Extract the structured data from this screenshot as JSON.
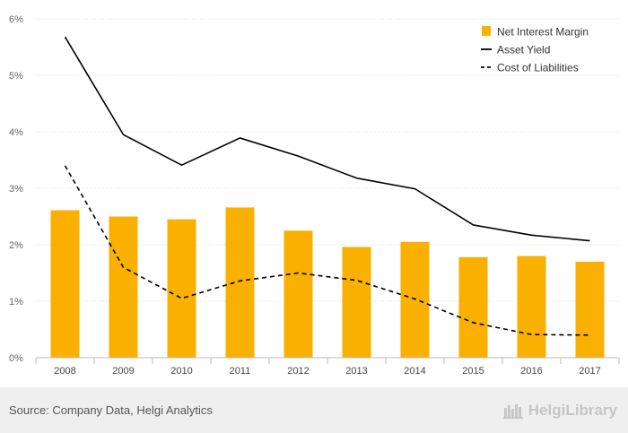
{
  "chart_data": {
    "type": "bar",
    "categories": [
      "2008",
      "2009",
      "2010",
      "2011",
      "2012",
      "2013",
      "2014",
      "2015",
      "2016",
      "2017"
    ],
    "series": [
      {
        "name": "Net Interest Margin",
        "type": "bar",
        "color": "#f9b000",
        "values": [
          2.61,
          2.5,
          2.45,
          2.66,
          2.25,
          1.96,
          2.05,
          1.78,
          1.8,
          1.7
        ]
      },
      {
        "name": "Asset Yield",
        "type": "line",
        "style": "solid",
        "color": "#000000",
        "values": [
          5.68,
          3.95,
          3.41,
          3.89,
          3.57,
          3.18,
          2.99,
          2.35,
          2.17,
          2.07
        ]
      },
      {
        "name": "Cost of Liabilities",
        "type": "line",
        "style": "dashed",
        "color": "#000000",
        "values": [
          3.4,
          1.6,
          1.05,
          1.36,
          1.5,
          1.37,
          1.04,
          0.62,
          0.41,
          0.4
        ]
      }
    ],
    "ylim": [
      0,
      6
    ],
    "yticks": [
      "0%",
      "1%",
      "2%",
      "3%",
      "4%",
      "5%",
      "6%"
    ],
    "grid": true,
    "legend_position": "top-right"
  },
  "footer": {
    "source": "Source: Company Data, Helgi Analytics",
    "brand": "HelgiLibrary"
  }
}
